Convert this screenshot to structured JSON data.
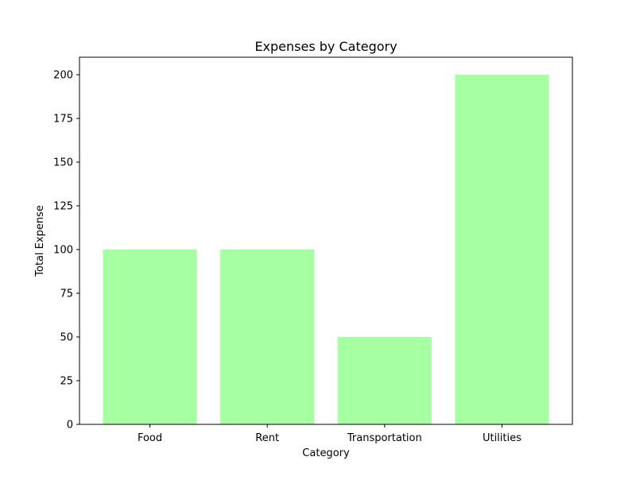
{
  "chart_data": {
    "type": "bar",
    "title": "Expenses by Category",
    "xlabel": "Category",
    "ylabel": "Total Expense",
    "categories": [
      "Food",
      "Rent",
      "Transportation",
      "Utilities"
    ],
    "values": [
      100,
      100,
      50,
      200
    ],
    "ylim": [
      0,
      210
    ],
    "yticks": [
      "0",
      "25",
      "50",
      "75",
      "100",
      "125",
      "150",
      "175",
      "200"
    ],
    "bar_color": "#a6ffa1",
    "grid": false,
    "legend": "none"
  }
}
